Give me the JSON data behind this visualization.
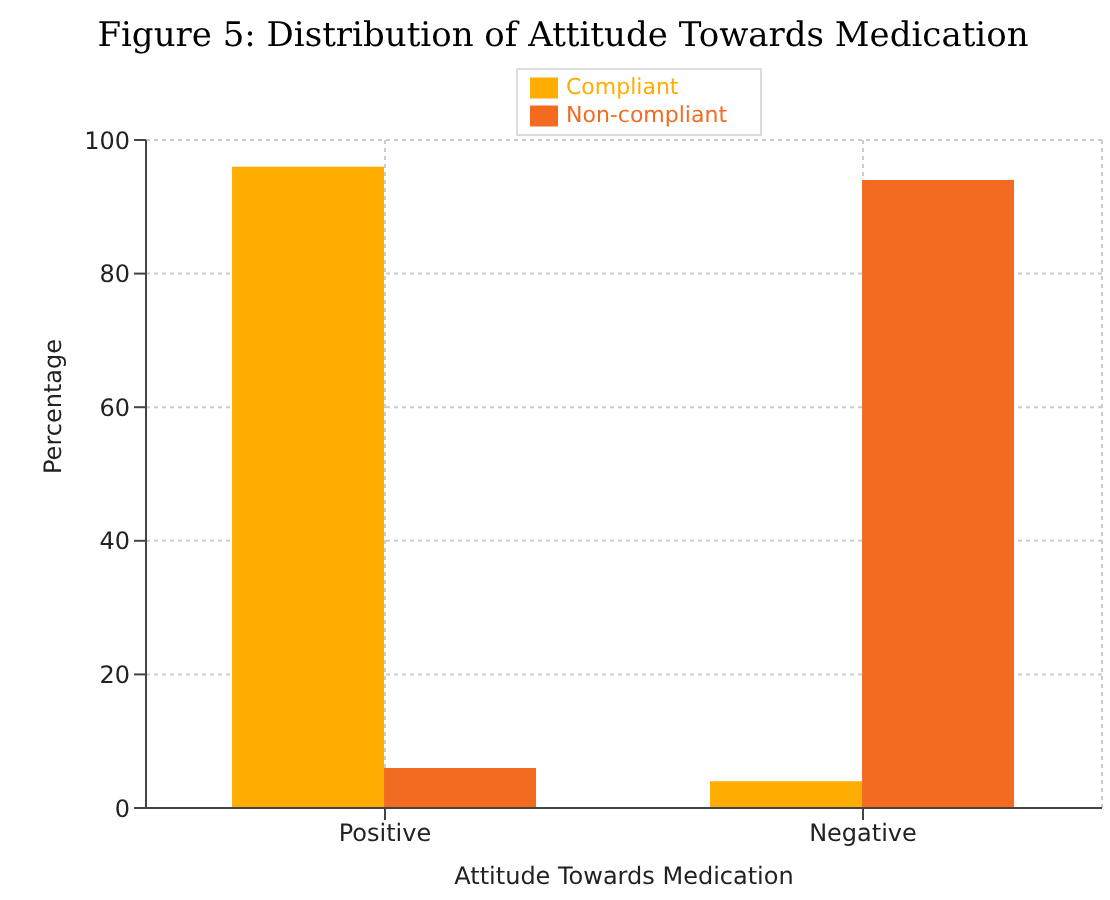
{
  "chart_data": {
    "type": "bar",
    "title": "Figure 5: Distribution of Attitude Towards Medication",
    "xlabel": "Attitude Towards Medication",
    "ylabel": "Percentage",
    "categories": [
      "Positive",
      "Negative"
    ],
    "series": [
      {
        "name": "Compliant",
        "color": "#ffad00",
        "values": [
          96,
          4
        ]
      },
      {
        "name": "Non-compliant",
        "color": "#f26b21",
        "values": [
          6,
          94
        ]
      }
    ],
    "ylim": [
      0,
      100
    ],
    "yticks": [
      0,
      20,
      40,
      60,
      80,
      100
    ],
    "grid": true,
    "legend": "top"
  }
}
